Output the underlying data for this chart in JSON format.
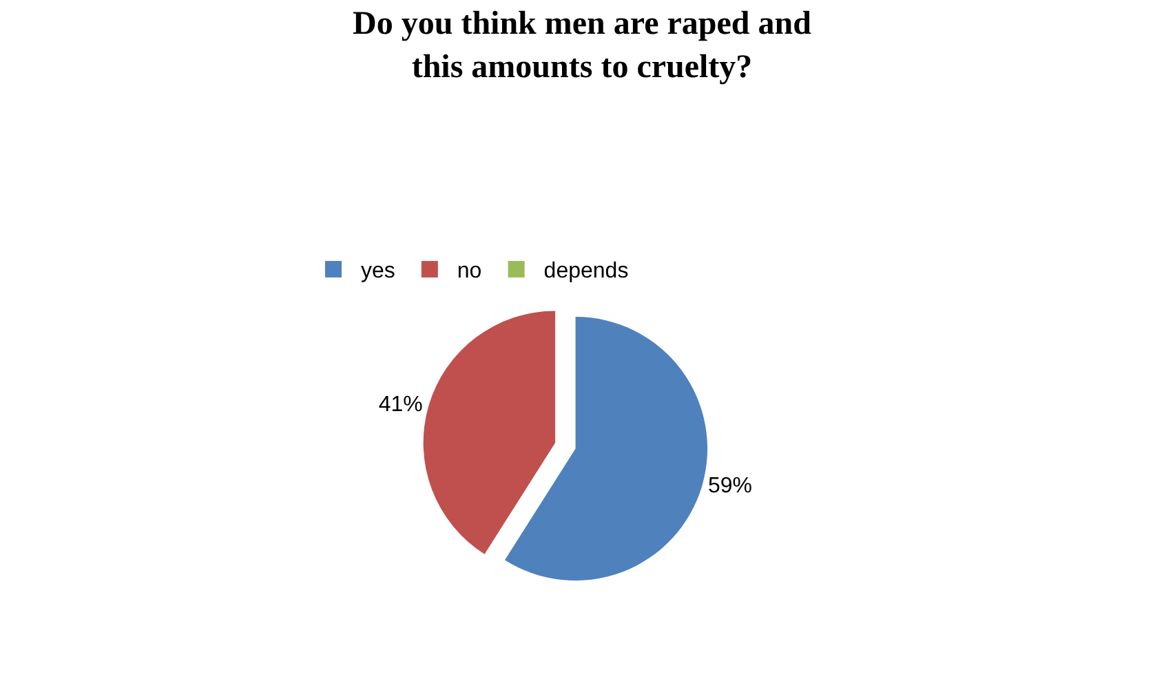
{
  "chart_data": {
    "type": "pie",
    "title": "Do you think men are raped and\nthis amounts to cruelty?",
    "categories": [
      "yes",
      "no",
      "depends"
    ],
    "values": [
      59,
      41,
      0
    ],
    "colors": [
      "#4f81bd",
      "#c0504d",
      "#9bbb59"
    ],
    "value_labels": [
      "59%",
      "41%",
      null
    ],
    "legend": "top"
  }
}
